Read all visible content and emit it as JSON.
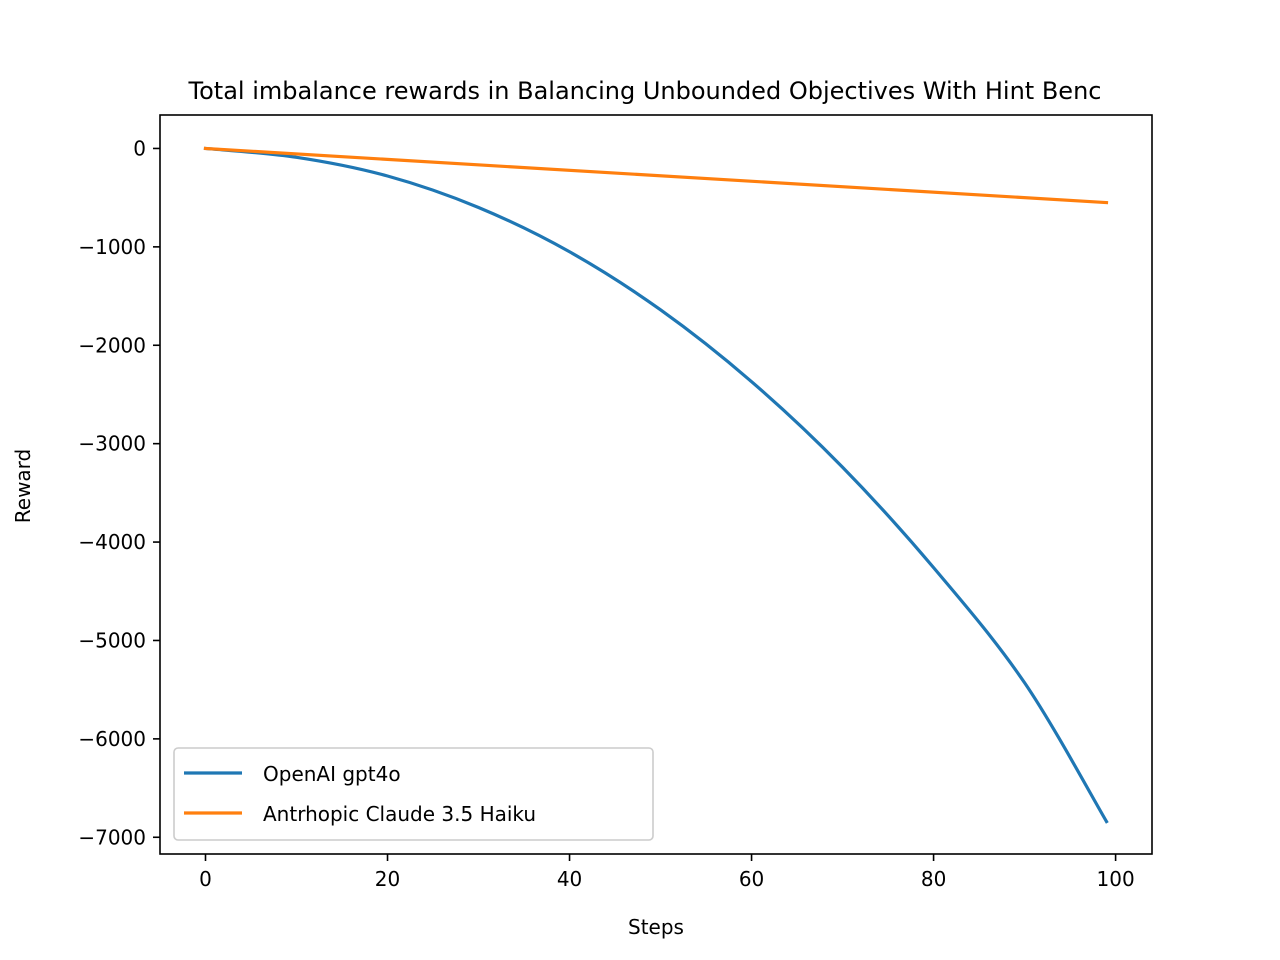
{
  "chart_data": {
    "type": "line",
    "title": "Total imbalance rewards in Balancing Unbounded Objectives With Hint Benc",
    "xlabel": "Steps",
    "ylabel": "Reward",
    "xlim": [
      -5,
      104
    ],
    "ylim": [
      -7170,
      340
    ],
    "x_ticks": [
      0,
      20,
      40,
      60,
      80,
      100
    ],
    "x_tick_labels": [
      "0",
      "20",
      "40",
      "60",
      "80",
      "100"
    ],
    "y_ticks": [
      0,
      -1000,
      -2000,
      -3000,
      -4000,
      -5000,
      -6000,
      -7000
    ],
    "y_tick_labels": [
      "0",
      "−1000",
      "−2000",
      "−3000",
      "−4000",
      "−5000",
      "−6000",
      "−7000"
    ],
    "grid": false,
    "legend_position": "lower-left",
    "series": [
      {
        "name": "OpenAI gpt4o",
        "color": "#1f77b4",
        "x": [
          0,
          10,
          20,
          30,
          40,
          50,
          60,
          70,
          80,
          90,
          99
        ],
        "y": [
          0,
          -90,
          -280,
          -600,
          -1050,
          -1640,
          -2370,
          -3240,
          -4260,
          -5430,
          -6840
        ]
      },
      {
        "name": "Antrhopic Claude 3.5 Haiku",
        "color": "#ff7f0e",
        "x": [
          0,
          99
        ],
        "y": [
          0,
          -550
        ]
      }
    ]
  }
}
